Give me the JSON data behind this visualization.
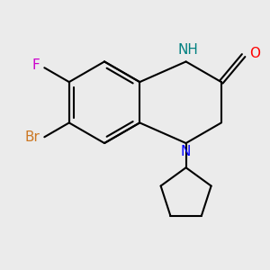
{
  "background_color": "#ebebeb",
  "bond_color": "#000000",
  "N_color": "#0000ff",
  "NH_color": "#008080",
  "O_color": "#ff0000",
  "Br_color": "#cc7722",
  "F_color": "#cc00cc",
  "line_width": 1.5,
  "font_size_atoms": 11,
  "xlim": [
    -3.5,
    3.0
  ],
  "ylim": [
    -3.5,
    2.5
  ]
}
